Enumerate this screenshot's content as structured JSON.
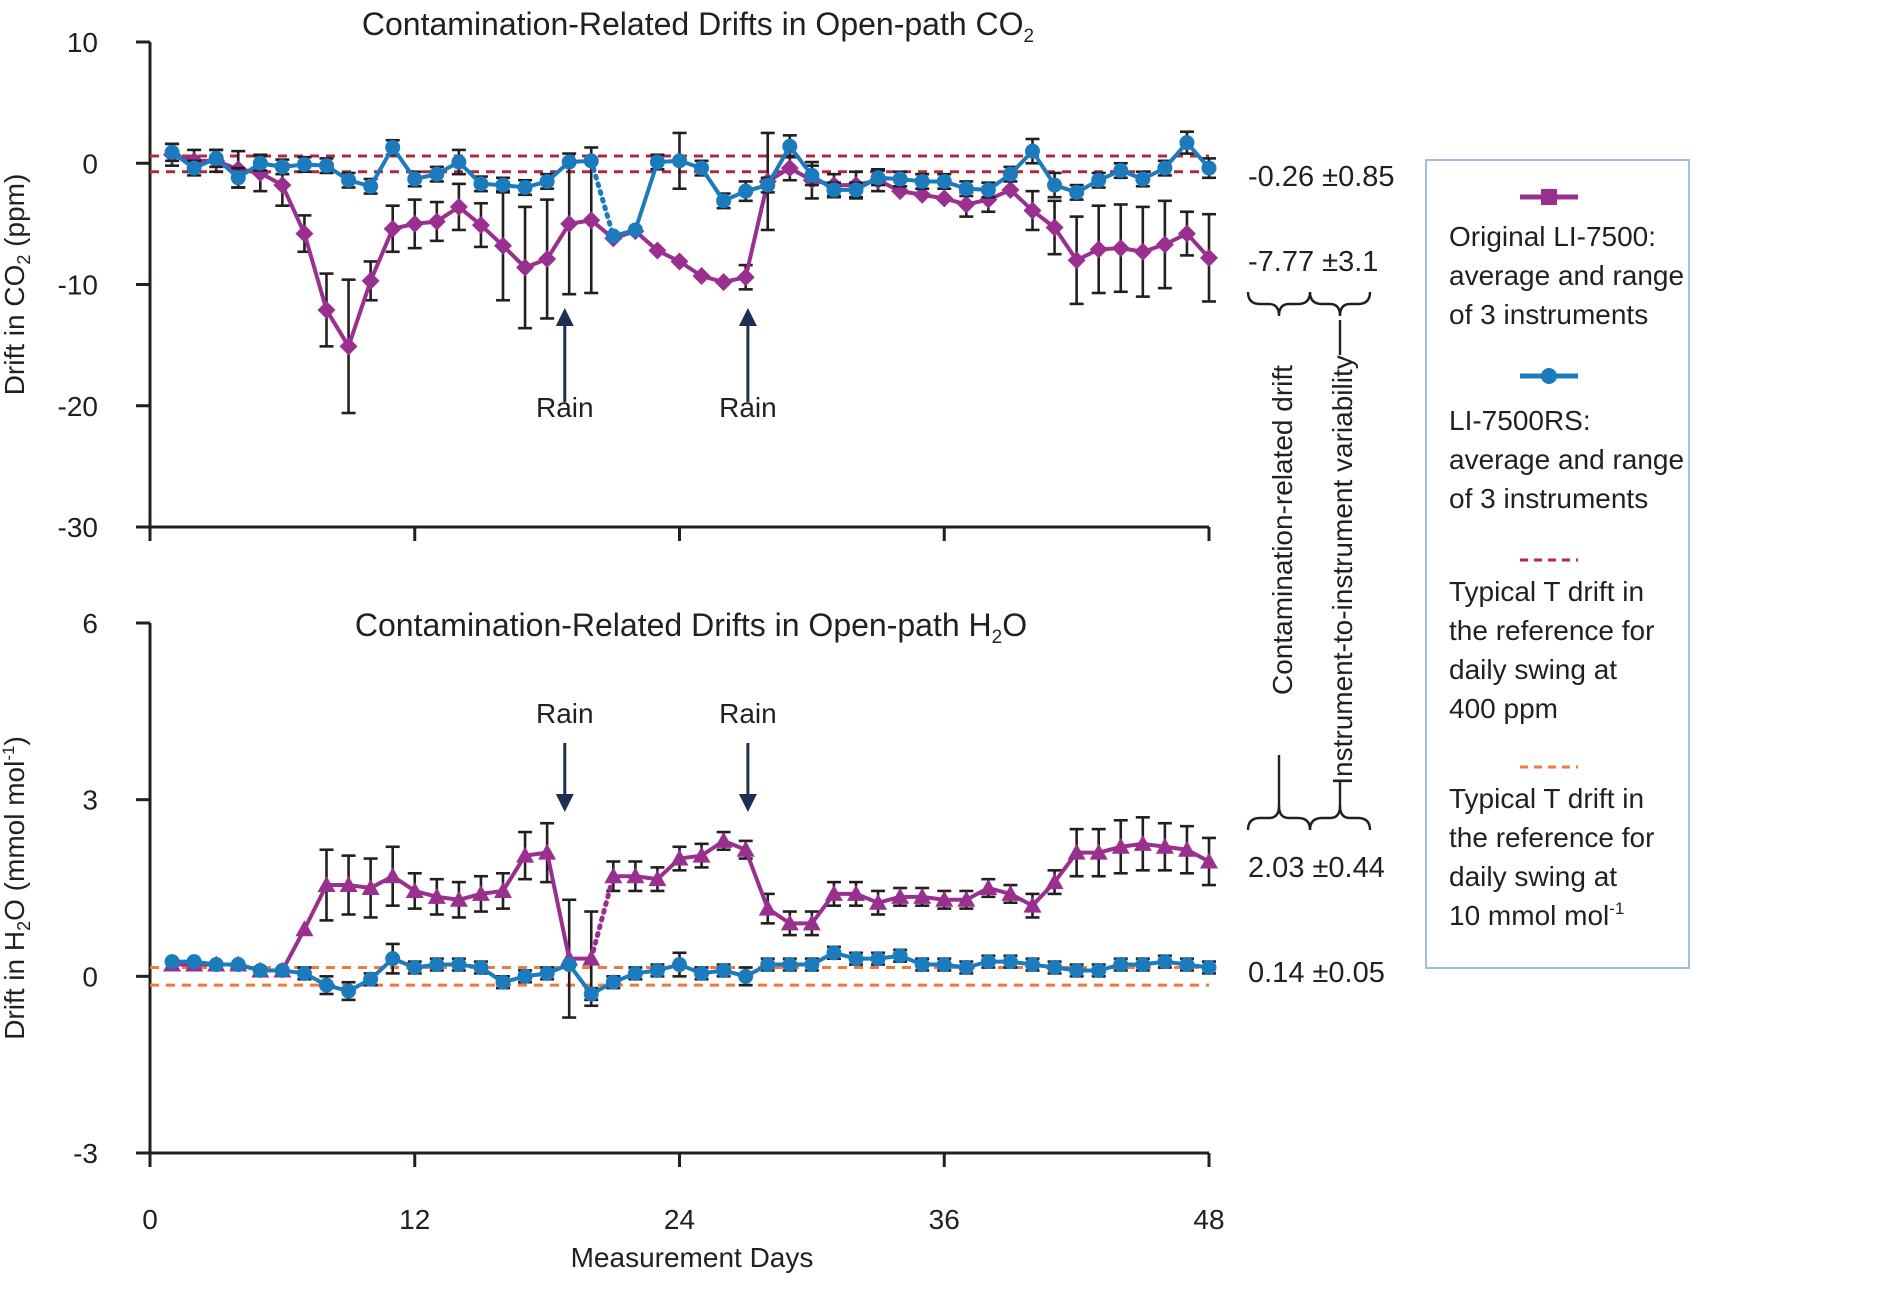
{
  "colors": {
    "original": "#99308f",
    "rs": "#1b7bbd",
    "ref_co2": "#b02a3a",
    "ref_h2o": "#ef7a3e",
    "axis": "#231f20",
    "arrow": "#1f2f4f",
    "legend_border": "#9fbfdc"
  },
  "x_axis": {
    "label": "Measurement Days",
    "ticks": [
      0,
      12,
      24,
      36,
      48
    ],
    "range": [
      0,
      48
    ]
  },
  "chart_data": [
    {
      "type": "line",
      "title_main": "Contamination-Related Drifts in Open-path CO",
      "title_sub": "2",
      "ylabel_main": "Drift in CO",
      "ylabel_sub": "2",
      "ylabel_unit": " (ppm)",
      "ylim": [
        -30,
        10
      ],
      "yticks": [
        10,
        0,
        -10,
        -20,
        -30
      ],
      "reference_lines": [
        0.6,
        -0.7
      ],
      "annotations": [
        {
          "label": "Rain",
          "x": 18.8,
          "direction": "up"
        },
        {
          "label": "Rain",
          "x": 27.1,
          "direction": "up"
        }
      ],
      "value_labels": [
        {
          "value": "-0.26",
          "pm": "±0.85",
          "y": -1
        },
        {
          "value": "-7.77",
          "pm": "±3.1",
          "y": -7.8
        }
      ],
      "series": [
        {
          "name": "Original LI-7500: average and range of 3 instruments",
          "marker": "diamond",
          "x": [
            1,
            2,
            3,
            4,
            5,
            6,
            7,
            8,
            9,
            10,
            11,
            12,
            13,
            14,
            15,
            16,
            17,
            18,
            19,
            20,
            21,
            22,
            23,
            24,
            25,
            26,
            27,
            28,
            29,
            30,
            31,
            32,
            33,
            34,
            35,
            36,
            37,
            38,
            39,
            40,
            41,
            42,
            43,
            44,
            45,
            46,
            47,
            48
          ],
          "y": [
            0.7,
            0.2,
            0.2,
            -0.5,
            -0.8,
            -1.8,
            -5.8,
            -12.1,
            -15.1,
            -9.7,
            -5.4,
            -5,
            -4.8,
            -3.6,
            -5.1,
            -6.8,
            -8.6,
            -7.9,
            -5,
            -4.7,
            -6.2,
            -5.6,
            -7.2,
            -8.1,
            -9.3,
            -9.8,
            -9.4,
            -1.5,
            -0.4,
            -1.4,
            -1.8,
            -1.8,
            -1.4,
            -2.3,
            -2.6,
            -2.9,
            -3.4,
            -3,
            -2.2,
            -3.9,
            -5.3,
            -8,
            -7.1,
            -7,
            -7.3,
            -6.7,
            -5.8,
            -7.8
          ],
          "err": [
            0.9,
            0.9,
            0.9,
            1.5,
            1.5,
            1.7,
            1.5,
            3,
            5.5,
            1.6,
            1.9,
            2,
            1.6,
            1.9,
            1.8,
            4.5,
            5,
            4.9,
            5.8,
            6,
            0,
            0,
            0,
            0,
            0,
            0,
            1,
            4,
            1,
            1.5,
            0.9,
            1.1,
            0.9,
            0,
            0,
            0,
            1,
            1,
            0,
            1.6,
            2.2,
            3.6,
            3.6,
            3.6,
            3.7,
            3.6,
            1.8,
            3.6
          ],
          "dotted_segment": [
            null,
            null
          ]
        },
        {
          "name": "LI-7500RS: average and range of 3 instruments",
          "marker": "circle",
          "x": [
            1,
            2,
            3,
            4,
            5,
            6,
            7,
            8,
            9,
            10,
            11,
            12,
            13,
            14,
            15,
            16,
            17,
            18,
            19,
            20,
            21,
            22,
            23,
            24,
            25,
            26,
            27,
            28,
            29,
            30,
            31,
            32,
            33,
            34,
            35,
            36,
            37,
            38,
            39,
            40,
            41,
            42,
            43,
            44,
            45,
            46,
            47,
            48
          ],
          "y": [
            0.9,
            -0.4,
            0.4,
            -1.2,
            0,
            -0.3,
            -0.1,
            -0.2,
            -1.4,
            -1.9,
            1.3,
            -1.3,
            -0.9,
            0.1,
            -1.7,
            -1.8,
            -2,
            -1.5,
            0.1,
            0.2,
            -6,
            -5.5,
            0.1,
            0.2,
            -0.4,
            -3.1,
            -2.3,
            -1.8,
            1.4,
            -1,
            -2.2,
            -2.2,
            -1.2,
            -1.3,
            -1.5,
            -1.5,
            -2.1,
            -2.2,
            -0.9,
            1,
            -1.8,
            -2.4,
            -1.4,
            -0.6,
            -1.3,
            -0.4,
            1.7,
            -0.4
          ],
          "err": [
            0.7,
            0.6,
            0.7,
            0.8,
            0.6,
            0.6,
            0.6,
            0.6,
            0.6,
            0.6,
            0.6,
            0.6,
            0.6,
            1,
            0.6,
            0.6,
            0.6,
            0.6,
            0,
            0,
            0,
            0,
            0.6,
            2.3,
            0.6,
            0.6,
            0.8,
            0.6,
            0.9,
            0.8,
            0.6,
            0.6,
            0.6,
            0.6,
            0.6,
            0.6,
            0.6,
            0.6,
            0.6,
            1,
            1,
            0.6,
            0.6,
            0.6,
            0.6,
            0.6,
            0.9,
            0.8
          ],
          "dotted_segment": [
            20,
            21
          ]
        }
      ]
    },
    {
      "type": "line",
      "title_main": "Contamination-Related Drifts in Open-path H",
      "title_sub": "2",
      "title_tail": "O",
      "ylabel_main": "Drift in H",
      "ylabel_sub": "2",
      "ylabel_tail": "O (mmol mol",
      "ylabel_sup": "-1",
      "ylabel_end": ")",
      "ylim": [
        -3,
        6
      ],
      "yticks": [
        6,
        3,
        0,
        -3
      ],
      "reference_lines": [
        0.15,
        -0.15
      ],
      "annotations": [
        {
          "label": "Rain",
          "x": 18.8,
          "direction": "down"
        },
        {
          "label": "Rain",
          "x": 27.1,
          "direction": "down"
        }
      ],
      "value_labels": [
        {
          "value": "2.03",
          "pm": "±0.44",
          "y": 1.9
        },
        {
          "value": "0.14",
          "pm": "±0.05",
          "y": 0.14
        }
      ],
      "series": [
        {
          "name": "Original LI-7500: average and range of 3 instruments",
          "marker": "triangle",
          "x": [
            1,
            2,
            3,
            4,
            5,
            6,
            7,
            8,
            9,
            10,
            11,
            12,
            13,
            14,
            15,
            16,
            17,
            18,
            19,
            20,
            21,
            22,
            23,
            24,
            25,
            26,
            27,
            28,
            29,
            30,
            31,
            32,
            33,
            34,
            35,
            36,
            37,
            38,
            39,
            40,
            41,
            42,
            43,
            44,
            45,
            46,
            47,
            48
          ],
          "y": [
            0.2,
            0.2,
            0.2,
            0.2,
            0.1,
            0.1,
            0.8,
            1.55,
            1.55,
            1.5,
            1.7,
            1.45,
            1.35,
            1.3,
            1.4,
            1.45,
            2.05,
            2.1,
            0.3,
            0.3,
            1.7,
            1.7,
            1.65,
            2,
            2.05,
            2.3,
            2.15,
            1.15,
            0.9,
            0.9,
            1.4,
            1.4,
            1.25,
            1.35,
            1.35,
            1.3,
            1.3,
            1.5,
            1.4,
            1.2,
            1.6,
            2.1,
            2.1,
            2.2,
            2.25,
            2.2,
            2.15,
            1.95
          ],
          "err": [
            0,
            0,
            0,
            0,
            0,
            0,
            0,
            0.6,
            0.5,
            0.5,
            0.5,
            0.3,
            0.3,
            0.3,
            0.3,
            0.3,
            0.4,
            0.5,
            1,
            0.8,
            0.25,
            0.25,
            0.2,
            0.2,
            0.2,
            0.15,
            0.15,
            0.25,
            0.2,
            0.2,
            0.2,
            0.2,
            0.2,
            0.15,
            0.15,
            0.15,
            0.15,
            0.15,
            0.15,
            0.2,
            0.2,
            0.4,
            0.4,
            0.45,
            0.45,
            0.4,
            0.4,
            0.4
          ],
          "dotted_segment": [
            20,
            21
          ]
        },
        {
          "name": "LI-7500RS: average and range of 3 instruments",
          "marker": "circle",
          "x": [
            1,
            2,
            3,
            4,
            5,
            6,
            7,
            8,
            9,
            10,
            11,
            12,
            13,
            14,
            15,
            16,
            17,
            18,
            19,
            20,
            21,
            22,
            23,
            24,
            25,
            26,
            27,
            28,
            29,
            30,
            31,
            32,
            33,
            34,
            35,
            36,
            37,
            38,
            39,
            40,
            41,
            42,
            43,
            44,
            45,
            46,
            47,
            48
          ],
          "y": [
            0.25,
            0.25,
            0.2,
            0.2,
            0.1,
            0.1,
            0.05,
            -0.15,
            -0.25,
            -0.05,
            0.3,
            0.15,
            0.2,
            0.2,
            0.15,
            -0.1,
            0,
            0.05,
            0.2,
            -0.3,
            -0.1,
            0.05,
            0.1,
            0.2,
            0.05,
            0.1,
            0,
            0.2,
            0.2,
            0.2,
            0.4,
            0.3,
            0.3,
            0.35,
            0.2,
            0.2,
            0.15,
            0.25,
            0.25,
            0.2,
            0.15,
            0.1,
            0.1,
            0.2,
            0.2,
            0.25,
            0.2,
            0.15
          ],
          "err": [
            0,
            0,
            0,
            0,
            0,
            0,
            0.1,
            0.15,
            0.15,
            0.1,
            0.25,
            0.1,
            0.1,
            0.1,
            0.1,
            0.1,
            0.1,
            0.1,
            0,
            0.1,
            0.1,
            0.1,
            0.1,
            0.2,
            0.1,
            0.1,
            0.15,
            0.1,
            0.1,
            0.1,
            0.1,
            0.1,
            0.1,
            0.1,
            0.1,
            0.1,
            0.1,
            0.1,
            0.1,
            0.1,
            0.1,
            0.1,
            0.1,
            0.1,
            0.1,
            0.1,
            0.1,
            0.1
          ],
          "dotted_segment": [
            null,
            null
          ]
        }
      ]
    }
  ],
  "braces": {
    "drift_label": "Contamination-related drift",
    "variability_label": "Instrument-to-instrument variability"
  },
  "legend": {
    "items": [
      {
        "kind": "line-square",
        "color_key": "original",
        "lines": [
          "Original LI-7500:",
          "average and range",
          "of 3 instruments"
        ]
      },
      {
        "kind": "line-circle",
        "color_key": "rs",
        "lines": [
          "LI-7500RS:",
          "average and range",
          "of 3 instruments"
        ]
      },
      {
        "kind": "dashed",
        "color_key": "ref_co2",
        "lines": [
          "Typical T drift in",
          "the reference for",
          "daily swing at",
          "400 ppm"
        ]
      },
      {
        "kind": "dashed",
        "color_key": "ref_h2o",
        "lines": [
          "Typical T drift in",
          "the reference for",
          "daily swing at",
          "10 mmol mol"
        ],
        "last_sup": "-1"
      }
    ]
  }
}
